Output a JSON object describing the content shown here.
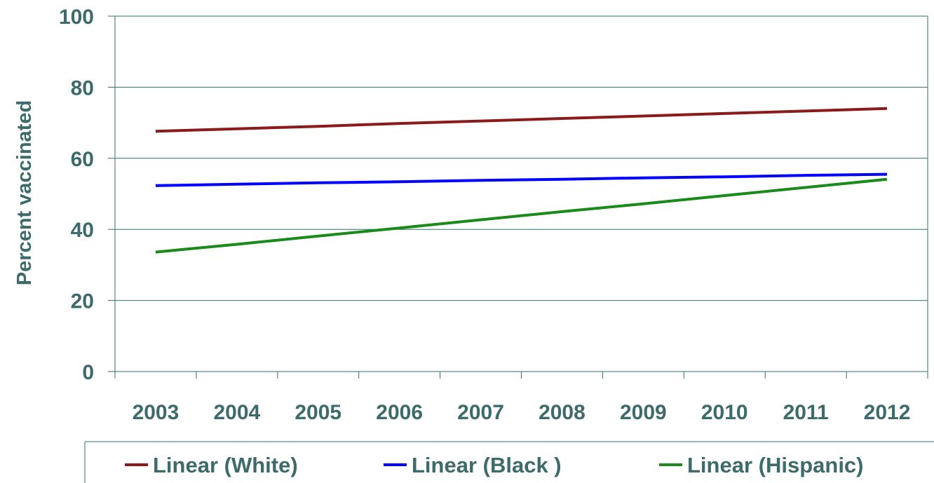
{
  "chart_data": {
    "type": "line",
    "title": "",
    "xlabel": "",
    "ylabel": "Percent vaccinated",
    "categories": [
      "2003",
      "2004",
      "2005",
      "2006",
      "2007",
      "2008",
      "2009",
      "2010",
      "2011",
      "2012"
    ],
    "ylim": [
      0,
      100
    ],
    "yticks": [
      0,
      20,
      40,
      60,
      80,
      100
    ],
    "grid": "horizontal",
    "legend_position": "bottom",
    "text_color": "#3d6b6b",
    "series": [
      {
        "name": "Linear (White)",
        "color": "#8b1a1a",
        "values": [
          67.6,
          68.3,
          69.0,
          69.8,
          70.5,
          71.2,
          71.9,
          72.6,
          73.3,
          74.0
        ]
      },
      {
        "name": "Linear (Black )",
        "color": "#0000ff",
        "values": [
          52.3,
          52.7,
          53.1,
          53.4,
          53.8,
          54.1,
          54.5,
          54.8,
          55.2,
          55.5
        ]
      },
      {
        "name": "Linear (Hispanic)",
        "color": "#1a8a1a",
        "values": [
          33.6,
          35.8,
          38.1,
          40.4,
          42.7,
          45.0,
          47.2,
          49.5,
          51.8,
          54.1
        ]
      }
    ]
  }
}
